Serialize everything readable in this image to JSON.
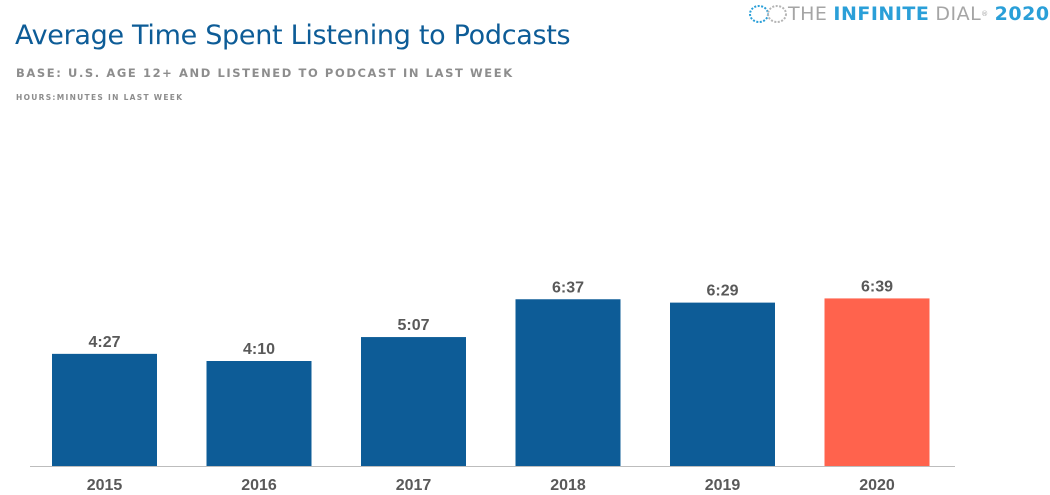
{
  "logo": {
    "the": "THE",
    "infinite": "INFINITE",
    "dial": "DIAL",
    "year": "2020",
    "registered": "®"
  },
  "chart_data": {
    "type": "bar",
    "title": "Average Time Spent Listening to Podcasts",
    "subtitle": "BASE: U.S. AGE 12+ AND LISTENED TO PODCAST IN LAST WEEK",
    "ylabel": "HOURS:MINUTES IN LAST WEEK",
    "categories": [
      "2015",
      "2016",
      "2017",
      "2018",
      "2019",
      "2020"
    ],
    "values": [
      "4:27",
      "4:10",
      "5:07",
      "6:37",
      "6:29",
      "6:39"
    ],
    "colors": [
      "#0d5c97",
      "#0d5c97",
      "#0d5c97",
      "#0d5c97",
      "#0d5c97",
      "#ff634d"
    ],
    "grid": false
  }
}
